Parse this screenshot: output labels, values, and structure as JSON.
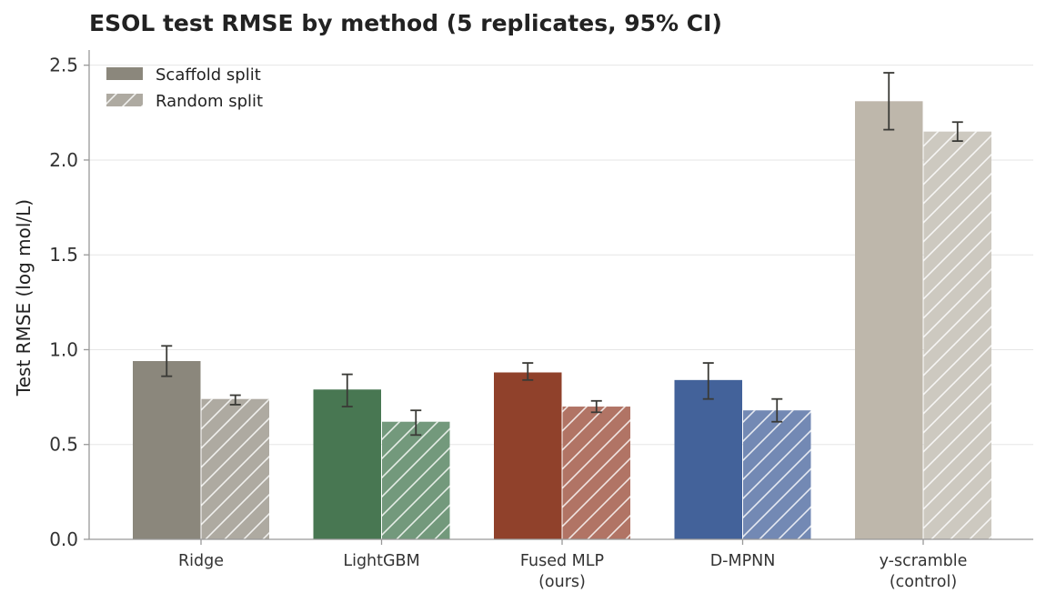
{
  "chart_data": {
    "type": "bar",
    "title": "ESOL test RMSE by method (5 replicates, 95% CI)",
    "ylabel": "Test RMSE  (log mol/L)",
    "xlabel": "",
    "ylim": [
      0,
      2.58
    ],
    "yticks": [
      "0.0",
      "0.5",
      "1.0",
      "1.5",
      "2.0",
      "2.5"
    ],
    "grid": "horizontal",
    "legend_position": "top-left",
    "categories": [
      {
        "label_lines": [
          "Ridge"
        ],
        "colors": {
          "scaffold": "#8b877c",
          "random": "#aeaaa1"
        }
      },
      {
        "label_lines": [
          "LightGBM"
        ],
        "colors": {
          "scaffold": "#487752",
          "random": "#73997c"
        }
      },
      {
        "label_lines": [
          "Fused MLP",
          "(ours)"
        ],
        "colors": {
          "scaffold": "#90412b",
          "random": "#b17465"
        }
      },
      {
        "label_lines": [
          "D-MPNN"
        ],
        "colors": {
          "scaffold": "#43629a",
          "random": "#7389b4"
        }
      },
      {
        "label_lines": [
          "y-scramble",
          "(control)"
        ],
        "colors": {
          "scaffold": "#beb7ab",
          "random": "#cdc9c0"
        }
      }
    ],
    "series": [
      {
        "name": "Scaffold split",
        "key": "scaffold",
        "hatched": false,
        "values": [
          0.94,
          0.79,
          0.88,
          0.84,
          2.31
        ],
        "ci_low": [
          0.86,
          0.7,
          0.84,
          0.74,
          2.16
        ],
        "ci_high": [
          1.02,
          0.87,
          0.93,
          0.93,
          2.46
        ]
      },
      {
        "name": "Random split",
        "key": "random",
        "hatched": true,
        "values": [
          0.74,
          0.62,
          0.7,
          0.68,
          2.15
        ],
        "ci_low": [
          0.71,
          0.55,
          0.67,
          0.62,
          2.1
        ],
        "ci_high": [
          0.76,
          0.68,
          0.73,
          0.74,
          2.2
        ]
      }
    ],
    "legend_colors": {
      "scaffold": "#8b877c",
      "random": "#aeaaa1"
    }
  }
}
